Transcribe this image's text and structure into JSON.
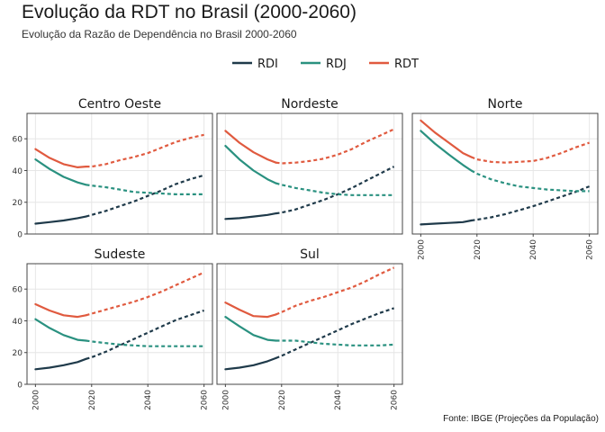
{
  "title": "Evolução da RDT no Brasil (2000-2060)",
  "subtitle": "Evolução da Razão de Dependência no Brasil 2000-2060",
  "caption": "Fonte: IBGE (Projeções da População)",
  "chart_data": {
    "type": "line",
    "facet_by": "region",
    "xlim": [
      1997,
      2063
    ],
    "ylim": [
      0,
      76
    ],
    "x_ticks": [
      2000,
      2020,
      2040,
      2060
    ],
    "y_ticks": [
      0,
      20,
      40,
      60
    ],
    "grid": true,
    "legend_position": "top-center",
    "projection_start": 2018,
    "line_style_note": "solid = observed (≤2018), dashed = projected",
    "colors": {
      "RDI": "#1f3a4a",
      "RDJ": "#2a9180",
      "RDT": "#e05a3f"
    },
    "series_names": [
      "RDI",
      "RDJ",
      "RDT"
    ],
    "x": [
      2000,
      2005,
      2010,
      2015,
      2018,
      2020,
      2025,
      2030,
      2035,
      2040,
      2045,
      2050,
      2055,
      2060
    ],
    "panels": [
      {
        "name": "Centro Oeste",
        "series": [
          {
            "name": "RDI",
            "values": [
              6.5,
              7.5,
              8.5,
              10,
              11,
              12,
              14.5,
              17.5,
              20.5,
              24,
              27.5,
              31.5,
              34.5,
              37
            ]
          },
          {
            "name": "RDJ",
            "values": [
              47,
              41,
              36,
              32.5,
              31,
              30.5,
              29.5,
              28,
              26.5,
              26,
              25.5,
              25,
              25,
              25
            ]
          },
          {
            "name": "RDT",
            "values": [
              53.5,
              48,
              44,
              42,
              42.5,
              42.5,
              44,
              46.5,
              48.5,
              51,
              54.5,
              58,
              60.5,
              62.5
            ]
          }
        ]
      },
      {
        "name": "Nordeste",
        "series": [
          {
            "name": "RDI",
            "values": [
              9.5,
              10,
              11,
              12,
              13,
              13.5,
              15.5,
              18.5,
              21.5,
              25,
              29,
              33.5,
              38,
              42.5
            ]
          },
          {
            "name": "RDJ",
            "values": [
              55.5,
              47,
              40,
              34.5,
              32,
              31,
              29,
              27.5,
              26,
              25,
              24.5,
              24.5,
              24.5,
              24.5
            ]
          },
          {
            "name": "RDT",
            "values": [
              65,
              57.5,
              51.5,
              47,
              45,
              44.5,
              45,
              46,
              47.5,
              50,
              53.5,
              58,
              62,
              66
            ]
          }
        ]
      },
      {
        "name": "Norte",
        "series": [
          {
            "name": "RDI",
            "values": [
              6,
              6.5,
              7,
              7.5,
              8.5,
              9,
              10.5,
              12.5,
              15,
              17.5,
              20.5,
              23.5,
              26.5,
              30
            ]
          },
          {
            "name": "RDJ",
            "values": [
              65,
              57,
              50,
              43.5,
              40,
              38,
              34.5,
              32,
              30,
              29,
              28,
              27.5,
              27,
              27
            ]
          },
          {
            "name": "RDT",
            "values": [
              71.5,
              64,
              57.5,
              51,
              48.5,
              47,
              45.5,
              45,
              45.5,
              46,
              48,
              51,
              54.5,
              57.5
            ]
          }
        ]
      },
      {
        "name": "Sudeste",
        "series": [
          {
            "name": "RDI",
            "values": [
              9.5,
              10.5,
              12,
              14,
              16,
              17,
              20.5,
              24.5,
              28.5,
              32.5,
              36.5,
              40.5,
              43.5,
              46.5
            ]
          },
          {
            "name": "RDJ",
            "values": [
              41,
              35.5,
              31,
              28,
              27.5,
              27,
              26,
              25,
              24.5,
              24,
              24,
              24,
              24,
              24
            ]
          },
          {
            "name": "RDT",
            "values": [
              50.5,
              46.5,
              43.5,
              42.5,
              43.5,
              44.5,
              47,
              49.5,
              52,
              55,
              58.5,
              62.5,
              66.5,
              70.5
            ]
          }
        ]
      },
      {
        "name": "Sul",
        "series": [
          {
            "name": "RDI",
            "values": [
              9.5,
              10.5,
              12,
              14.5,
              16.5,
              18,
              22,
              26,
              30,
              34,
              38,
              41.5,
              45,
              48
            ]
          },
          {
            "name": "RDJ",
            "values": [
              42.5,
              36.5,
              31,
              28,
              27.5,
              27.5,
              27.5,
              26.5,
              25.5,
              25,
              24.5,
              24.5,
              24.5,
              25
            ]
          },
          {
            "name": "RDT",
            "values": [
              51.5,
              47,
              43,
              42.5,
              44,
              45.5,
              49.5,
              52.5,
              55,
              58,
              61,
              65,
              69.5,
              73.5
            ]
          }
        ]
      }
    ]
  }
}
